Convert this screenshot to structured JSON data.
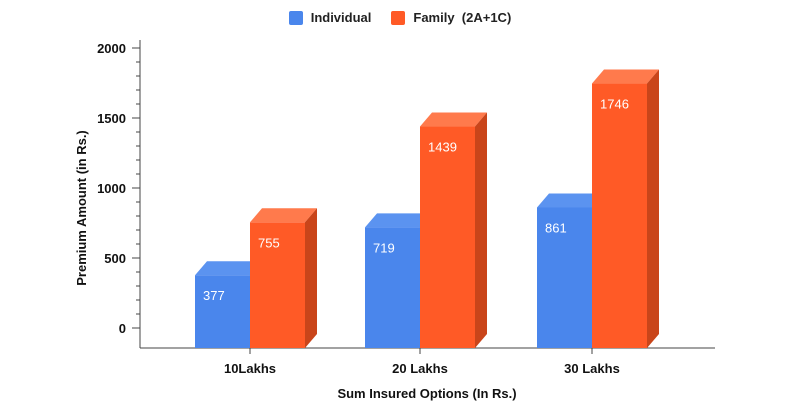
{
  "chart_data": {
    "type": "bar",
    "categories": [
      "10Lakhs",
      "20 Lakhs",
      "30 Lakhs"
    ],
    "series": [
      {
        "name": "Individual",
        "values": [
          377,
          719,
          861
        ],
        "color": "#4a86ec",
        "top": "#5b93f0",
        "side": "#3a6ec8"
      },
      {
        "name": "Family  (2A+1C)",
        "values": [
          755,
          1439,
          1746
        ],
        "color": "#ff5a26",
        "top": "#ff7a4c",
        "side": "#c9451a"
      }
    ],
    "title": "",
    "xlabel": "Sum Insured Options (In Rs.)",
    "ylabel": "Premium Amount (in Rs.)",
    "ylim": [
      0,
      2000
    ],
    "yticks": [
      0,
      500,
      1000,
      1500,
      2000
    ],
    "grid": false,
    "legend_position": "top"
  }
}
